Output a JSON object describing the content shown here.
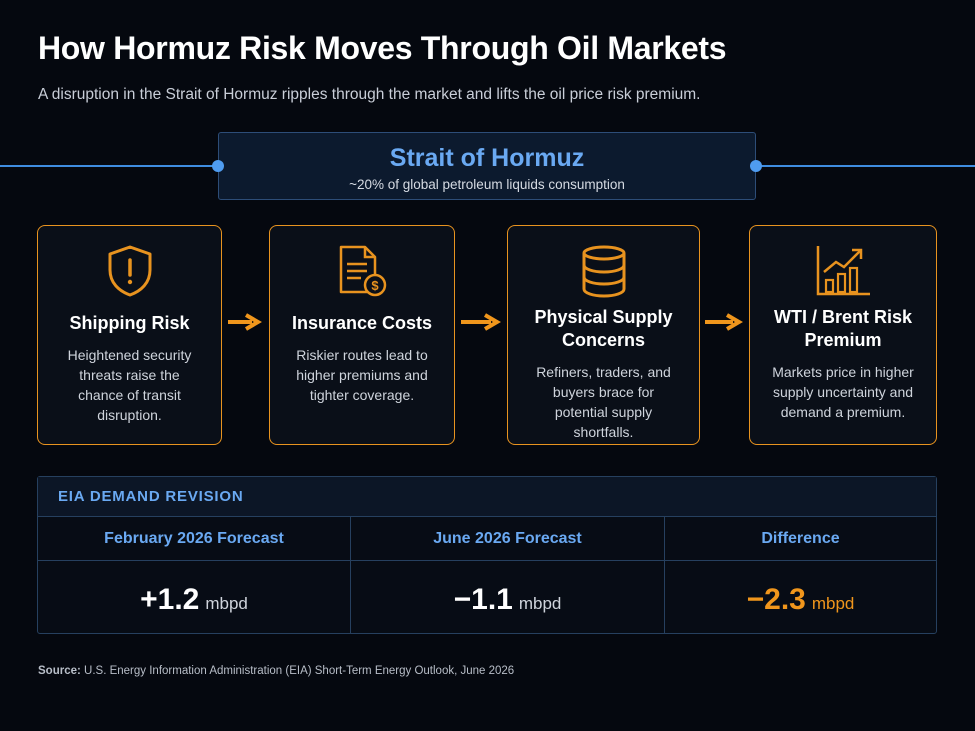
{
  "header": {
    "title": "How Hormuz Risk Moves Through Oil Markets",
    "subtitle": "A disruption in the Strait of Hormuz ripples through the market and lifts the oil price risk premium."
  },
  "strait": {
    "title": "Strait of Hormuz",
    "subtitle": "~20% of global petroleum liquids consumption"
  },
  "steps": [
    {
      "title": "Shipping Risk",
      "description": "Heightened security threats raise the chance of transit disruption."
    },
    {
      "title": "Insurance Costs",
      "description": "Riskier routes lead to higher premiums and tighter coverage."
    },
    {
      "title": "Physical Supply Concerns",
      "description": "Refiners, traders, and buyers brace for potential supply shortfalls."
    },
    {
      "title": "WTI / Brent Risk Premium",
      "description": "Markets price in higher supply uncertainty and demand a premium."
    }
  ],
  "revision": {
    "label": "EIA DEMAND REVISION",
    "columns": [
      {
        "header": "February 2026 Forecast",
        "value": "+1.2",
        "unit": "mbpd"
      },
      {
        "header": "June 2026 Forecast",
        "value": "−1.1",
        "unit": "mbpd"
      },
      {
        "header": "Difference",
        "value": "−2.3",
        "unit": "mbpd"
      }
    ]
  },
  "source": {
    "label": "Source:",
    "text": "U.S. Energy Information Administration (EIA) Short-Term Energy Outlook, June 2026"
  }
}
